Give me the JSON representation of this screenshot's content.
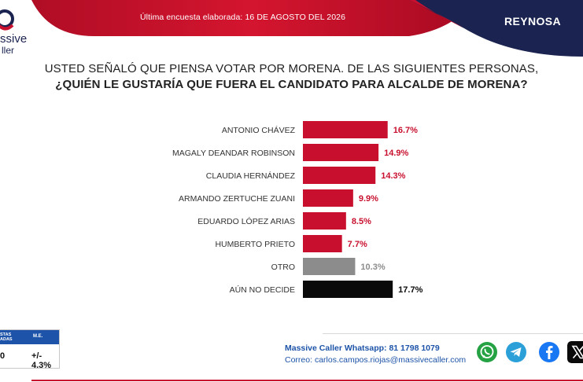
{
  "header": {
    "date_text": "Última encuesta elaborada: 16 DE AGOSTO DEL 2026",
    "region": "REYNOSA"
  },
  "brand": {
    "logo_text_line1": "ssive",
    "logo_text_line2": "ller",
    "primary_color": "#c8102e",
    "navy_color": "#1b2350"
  },
  "question": {
    "line1": "USTED SEÑALÓ QUE PIENSA VOTAR POR MORENA. DE LAS SIGUIENTES PERSONAS,",
    "line2": "¿QUIÉN LE GUSTARÍA QUE FUERA EL CANDIDATO PARA ALCALDE DE MORENA?"
  },
  "chart_data": {
    "type": "bar",
    "orientation": "horizontal",
    "categories": [
      "ANTONIO CHÁVEZ",
      "MAGALY DEANDAR ROBINSON",
      "CLAUDIA HERNÁNDEZ",
      "ARMANDO ZERTUCHE ZUANI",
      "EDUARDO LÓPEZ ARIAS",
      "HUMBERTO PRIETO",
      "OTRO",
      "AÚN NO DECIDE"
    ],
    "values": [
      16.7,
      14.9,
      14.3,
      9.9,
      8.5,
      7.7,
      10.3,
      17.7
    ],
    "labels": [
      "16.7%",
      "14.9%",
      "14.3%",
      "9.9%",
      "8.5%",
      "7.7%",
      "10.3%",
      "17.7%"
    ],
    "bar_colors": [
      "#c8102e",
      "#c8102e",
      "#c8102e",
      "#c8102e",
      "#c8102e",
      "#c8102e",
      "#8c8c8c",
      "#0a0a0a"
    ],
    "label_colors": [
      "#c8102e",
      "#c8102e",
      "#c8102e",
      "#c8102e",
      "#c8102e",
      "#c8102e",
      "#8c8c8c",
      "#0a0a0a"
    ],
    "grid": false,
    "legend": "none"
  },
  "footer": {
    "box_header_1": "STAS\nADAS",
    "box_header_2": "M.E.",
    "box_value_1": "0",
    "box_value_2": "+/- 4.3%",
    "whatsapp_text": "Massive Caller Whatsapp: 81 1798 1079",
    "email_label": "Correo:",
    "email": "carlos.campos.riojas@massivecaller.com"
  },
  "social_icons": [
    "whatsapp-icon",
    "telegram-icon",
    "facebook-icon",
    "x-icon"
  ]
}
